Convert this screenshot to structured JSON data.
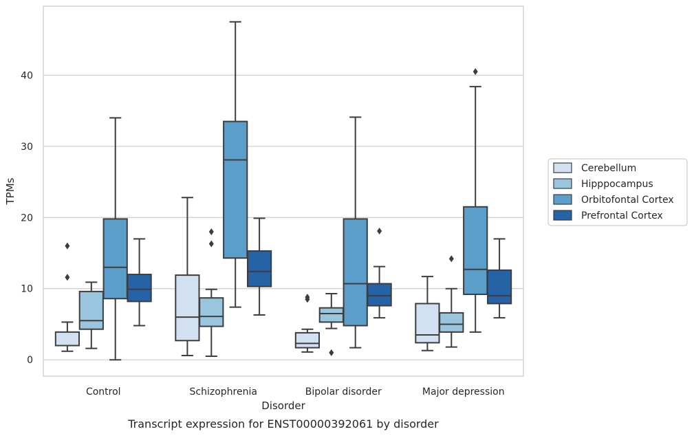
{
  "caption": "Transcript expression for ENST00000392061 by disorder",
  "chart_data": {
    "type": "box",
    "xlabel": "Disorder",
    "ylabel": "TPMs",
    "ylim": [
      -2.3,
      49.7
    ],
    "yticks": [
      0,
      10,
      20,
      30,
      40
    ],
    "grid": "horizontal",
    "legend_position": "right",
    "categories": [
      "Control",
      "Schizophrenia",
      "Bipolar disorder",
      "Major depression"
    ],
    "series": [
      {
        "name": "Cerebellum",
        "color": "#d1e1f1",
        "boxes": [
          {
            "whisker_low": 1.2,
            "q1": 2.0,
            "median": 2.0,
            "q3": 3.9,
            "whisker_high": 5.3,
            "outliers": [
              11.6,
              16.0
            ]
          },
          {
            "whisker_low": 0.6,
            "q1": 2.7,
            "median": 6.0,
            "q3": 11.9,
            "whisker_high": 22.8,
            "outliers": []
          },
          {
            "whisker_low": 1.1,
            "q1": 1.7,
            "median": 2.3,
            "q3": 3.8,
            "whisker_high": 4.3,
            "outliers": [
              8.5,
              8.8
            ]
          },
          {
            "whisker_low": 1.3,
            "q1": 2.4,
            "median": 3.5,
            "q3": 7.9,
            "whisker_high": 11.7,
            "outliers": []
          }
        ]
      },
      {
        "name": "Hipppocampus",
        "color": "#9ac5df",
        "boxes": [
          {
            "whisker_low": 1.6,
            "q1": 4.3,
            "median": 5.5,
            "q3": 9.6,
            "whisker_high": 10.9,
            "outliers": []
          },
          {
            "whisker_low": 0.5,
            "q1": 4.7,
            "median": 6.1,
            "q3": 8.7,
            "whisker_high": 9.9,
            "outliers": [
              16.3,
              18.0
            ]
          },
          {
            "whisker_low": 4.4,
            "q1": 5.3,
            "median": 6.5,
            "q3": 7.3,
            "whisker_high": 9.3,
            "outliers": [
              1.0
            ]
          },
          {
            "whisker_low": 1.8,
            "q1": 3.9,
            "median": 5.0,
            "q3": 6.6,
            "whisker_high": 10.0,
            "outliers": [
              14.2
            ]
          }
        ]
      },
      {
        "name": "Orbitofontal Cortex",
        "color": "#5b9ec9",
        "boxes": [
          {
            "whisker_low": 0.0,
            "q1": 8.6,
            "median": 13.0,
            "q3": 19.8,
            "whisker_high": 34.0,
            "outliers": []
          },
          {
            "whisker_low": 7.4,
            "q1": 14.3,
            "median": 28.1,
            "q3": 33.5,
            "whisker_high": 47.5,
            "outliers": []
          },
          {
            "whisker_low": 1.7,
            "q1": 4.8,
            "median": 10.7,
            "q3": 19.8,
            "whisker_high": 34.1,
            "outliers": []
          },
          {
            "whisker_low": 3.9,
            "q1": 9.2,
            "median": 12.7,
            "q3": 21.5,
            "whisker_high": 38.4,
            "outliers": [
              40.5
            ]
          }
        ]
      },
      {
        "name": "Prefrontal Cortex",
        "color": "#2563a6",
        "boxes": [
          {
            "whisker_low": 4.8,
            "q1": 8.2,
            "median": 9.9,
            "q3": 12.0,
            "whisker_high": 17.0,
            "outliers": []
          },
          {
            "whisker_low": 6.3,
            "q1": 10.3,
            "median": 12.4,
            "q3": 15.3,
            "whisker_high": 19.9,
            "outliers": []
          },
          {
            "whisker_low": 5.9,
            "q1": 7.6,
            "median": 9.0,
            "q3": 10.7,
            "whisker_high": 13.1,
            "outliers": [
              18.1
            ]
          },
          {
            "whisker_low": 5.9,
            "q1": 7.9,
            "median": 9.0,
            "q3": 12.6,
            "whisker_high": 17.0,
            "outliers": []
          }
        ]
      }
    ]
  }
}
